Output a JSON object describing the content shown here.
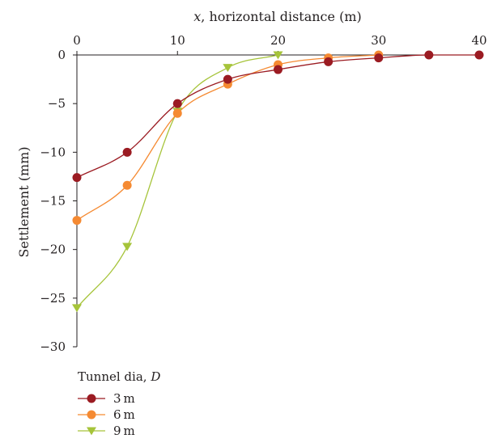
{
  "chart_data": {
    "type": "line",
    "xlabel_var": "x",
    "xlabel_rest": ", horizontal distance (m)",
    "ylabel": "Settlement (mm)",
    "xlim": [
      0,
      40
    ],
    "ylim": [
      -30,
      0
    ],
    "x_ticks": [
      0,
      10,
      20,
      30,
      40
    ],
    "y_ticks": [
      0,
      -5,
      -10,
      -15,
      -20,
      -25,
      -30
    ],
    "x_tick_labels": [
      "0",
      "10",
      "20",
      "30",
      "40"
    ],
    "y_tick_labels": [
      "0",
      "−5",
      "−10",
      "−15",
      "−20",
      "−25",
      "−30"
    ],
    "x_axis_position": "top",
    "grid": false,
    "legend_title_text": "Tunnel dia, ",
    "legend_title_var": "D",
    "legend_position": "bottom-left",
    "series": [
      {
        "name": "3 m",
        "color": "#9b1b22",
        "marker": "circle",
        "x": [
          0,
          5,
          10,
          15,
          20,
          25,
          30,
          35,
          40
        ],
        "y": [
          -12.6,
          -10.0,
          -5.0,
          -2.5,
          -1.5,
          -0.7,
          -0.3,
          0.0,
          0.0
        ]
      },
      {
        "name": "6 m",
        "color": "#f58a32",
        "marker": "circle",
        "x": [
          0,
          5,
          10,
          15,
          20,
          25,
          30
        ],
        "y": [
          -17.0,
          -13.4,
          -6.0,
          -3.0,
          -1.0,
          -0.3,
          0.0
        ]
      },
      {
        "name": "9 m",
        "color": "#a6c43a",
        "marker": "triangle-down",
        "x": [
          0,
          5,
          10,
          15,
          20
        ],
        "y": [
          -26.0,
          -19.7,
          -5.8,
          -1.3,
          0.0
        ]
      }
    ]
  }
}
